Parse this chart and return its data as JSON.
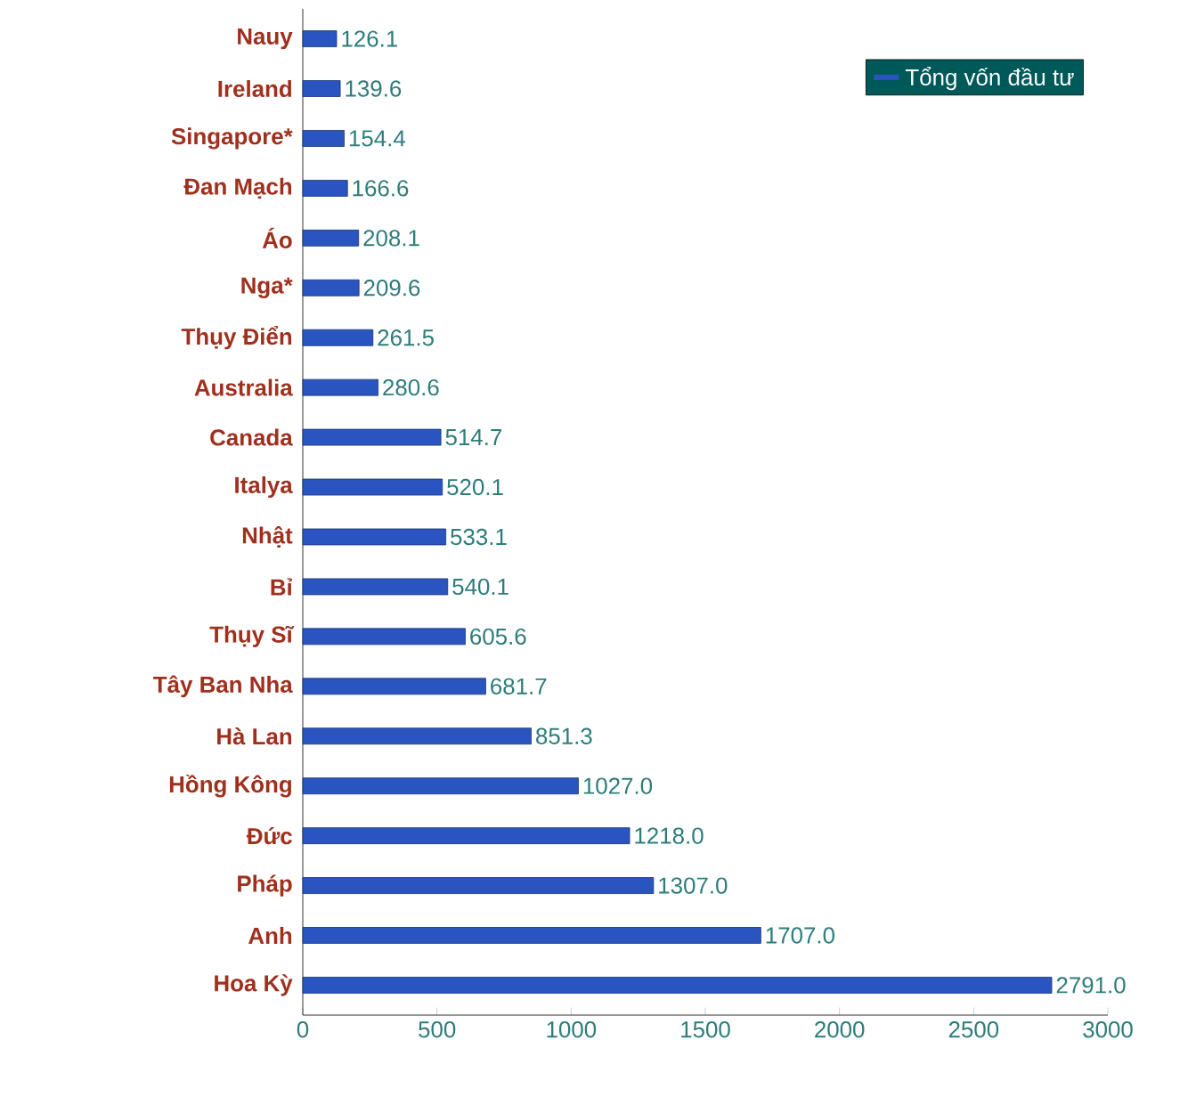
{
  "chart_data": {
    "type": "bar",
    "orientation": "horizontal",
    "categories": [
      "Nauy",
      "Ireland",
      "Singapore*",
      "Đan Mạch",
      "Áo",
      "Nga*",
      "Thụy Điển",
      "Australia",
      "Canada",
      "Italya",
      "Nhật",
      "Bỉ",
      "Thụy Sĩ",
      "Tây Ban Nha",
      "Hà Lan",
      "Hồng Kông",
      "Đức",
      "Pháp",
      "Anh",
      "Hoa Kỳ"
    ],
    "series": [
      {
        "name": "Tổng vốn đầu tư",
        "color": "#2a55c0",
        "values": [
          126.1,
          139.6,
          154.4,
          166.6,
          208.1,
          209.6,
          261.5,
          280.6,
          514.7,
          520.1,
          533.1,
          540.1,
          605.6,
          681.7,
          851.3,
          1027.0,
          1218.0,
          1307.0,
          1707.0,
          2791.0
        ],
        "value_labels": [
          "126.1",
          "139.6",
          "154.4",
          "166.6",
          "208.1",
          "209.6",
          "261.5",
          "280.6",
          "514.7",
          "520.1",
          "533.1",
          "540.1",
          "605.6",
          "681.7",
          "851.3",
          "1027.0",
          "1218.0",
          "1307.0",
          "1707.0",
          "2791.0"
        ]
      }
    ],
    "xlim": [
      0,
      3000
    ],
    "xticks": [
      0,
      500,
      1000,
      1500,
      2000,
      2500,
      3000
    ],
    "legend": "top right"
  }
}
